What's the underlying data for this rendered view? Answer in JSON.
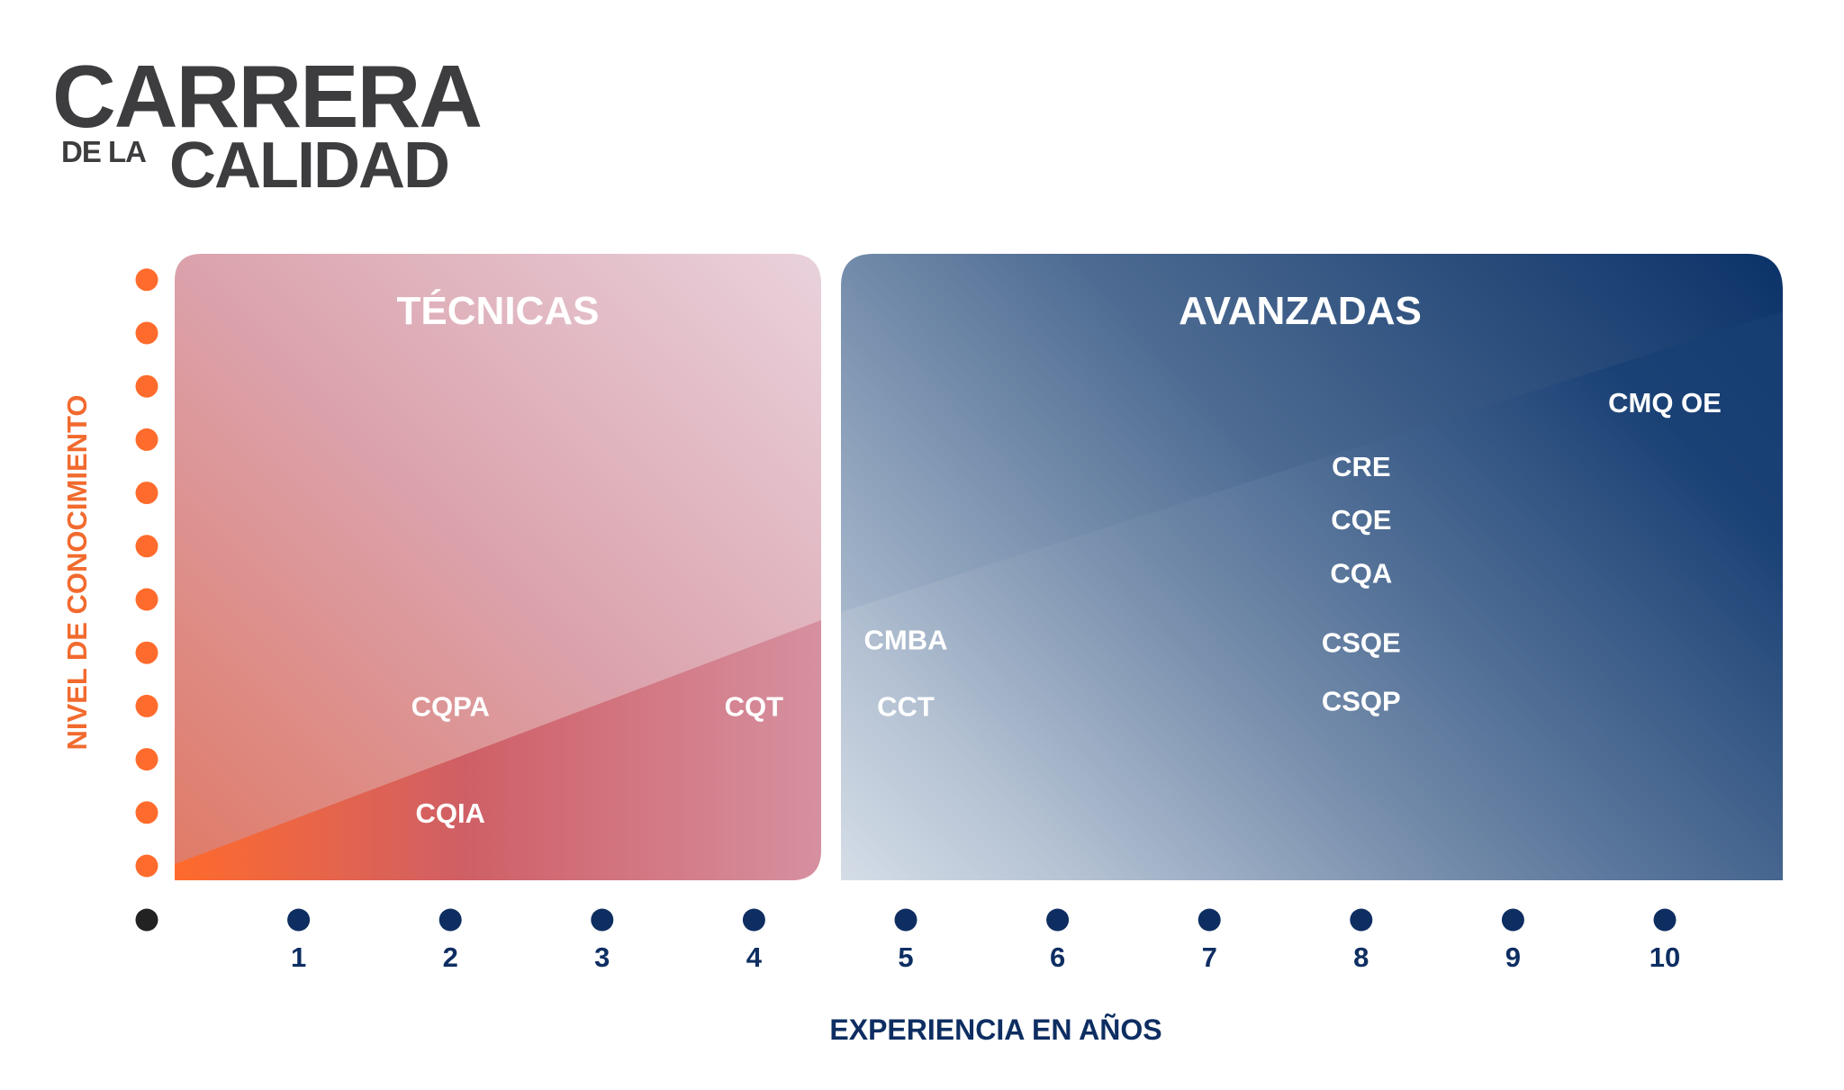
{
  "title": {
    "line1": "CARRERA",
    "prefix": "DE LA",
    "line2": "CALIDAD"
  },
  "axes": {
    "x_label": "EXPERIENCIA EN AÑOS",
    "y_label": "NIVEL DE CONOCIMIENTO",
    "x_ticks": [
      "1",
      "2",
      "3",
      "4",
      "5",
      "6",
      "7",
      "8",
      "9",
      "10"
    ],
    "y_dot_count": 12
  },
  "panels": [
    {
      "name": "tecnicas",
      "title": "TÉCNICAS",
      "years_from": 0,
      "years_to": 4.4
    },
    {
      "name": "avanzadas",
      "title": "AVANZADAS",
      "years_from": 4.5,
      "years_to": 11
    }
  ],
  "certifications": [
    {
      "code": "CQPA",
      "years": 2,
      "level": 3
    },
    {
      "code": "CQIA",
      "years": 2,
      "level": 1
    },
    {
      "code": "CQT",
      "years": 4,
      "level": 3
    },
    {
      "code": "CMBA",
      "years": 5,
      "level": 4.25
    },
    {
      "code": "CCT",
      "years": 5,
      "level": 3
    },
    {
      "code": "CRE",
      "years": 8,
      "level": 7.5
    },
    {
      "code": "CQE",
      "years": 8,
      "level": 6.5
    },
    {
      "code": "CQA",
      "years": 8,
      "level": 5.5
    },
    {
      "code": "CSQE",
      "years": 8,
      "level": 4.2
    },
    {
      "code": "CSQP",
      "years": 8,
      "level": 3.1
    },
    {
      "code": "CMQ OE",
      "years": 10,
      "level": 8.7
    }
  ],
  "colors": {
    "title": "#3d3d3f",
    "axis_orange": "#ff6b2c",
    "axis_navy": "#0e2e62",
    "origin": "#222222"
  }
}
